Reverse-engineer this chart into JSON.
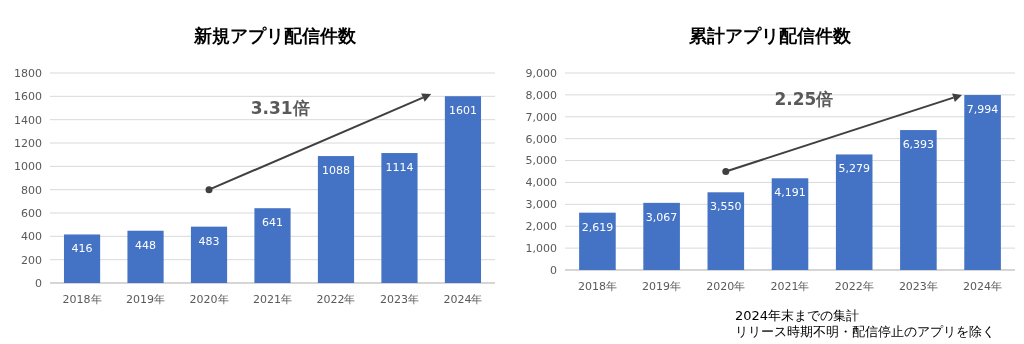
{
  "chart_data": [
    {
      "type": "bar",
      "title": "新規アプリ配信件数",
      "categories": [
        "2018年",
        "2019年",
        "2020年",
        "2021年",
        "2022年",
        "2023年",
        "2024年"
      ],
      "values": [
        416,
        448,
        483,
        641,
        1088,
        1114,
        1601
      ],
      "color": "#4472c4",
      "ylim": [
        0,
        1800
      ],
      "yticks": [
        0,
        200,
        400,
        600,
        800,
        1000,
        1200,
        1400,
        1600,
        1800
      ],
      "grid": "y",
      "data_labels": true,
      "annotations": [
        "3.31倍"
      ]
    },
    {
      "type": "bar",
      "title": "累計アプリ配信件数",
      "categories": [
        "2018年",
        "2019年",
        "2020年",
        "2021年",
        "2022年",
        "2023年",
        "2024年"
      ],
      "values": [
        2619,
        3067,
        3550,
        4191,
        5279,
        6393,
        7994
      ],
      "color": "#4472c4",
      "ylim": [
        0,
        9000
      ],
      "yticks": [
        0,
        {
          "value": 1000,
          "label": "1,000"
        },
        {
          "value": 2000,
          "label": "2,000"
        },
        {
          "value": 3000,
          "label": "3,000"
        },
        {
          "value": 4000,
          "label": "4,000"
        },
        {
          "value": 5000,
          "label": "5,000"
        },
        {
          "value": 6000,
          "label": "6,000"
        },
        {
          "value": 7000,
          "label": "7,000"
        },
        {
          "value": 8000,
          "label": "8,000"
        },
        {
          "value": 9000,
          "label": "9,000"
        }
      ],
      "grid": "y",
      "value_labels": [
        "2,619",
        "3,067",
        "3,550",
        "4,191",
        "5,279",
        "6,393",
        "7,994"
      ],
      "annotations": [
        "2.25倍",
        "2024年末までの集計",
        "リリース時期不明・配信停止のアプリを除く"
      ]
    }
  ]
}
